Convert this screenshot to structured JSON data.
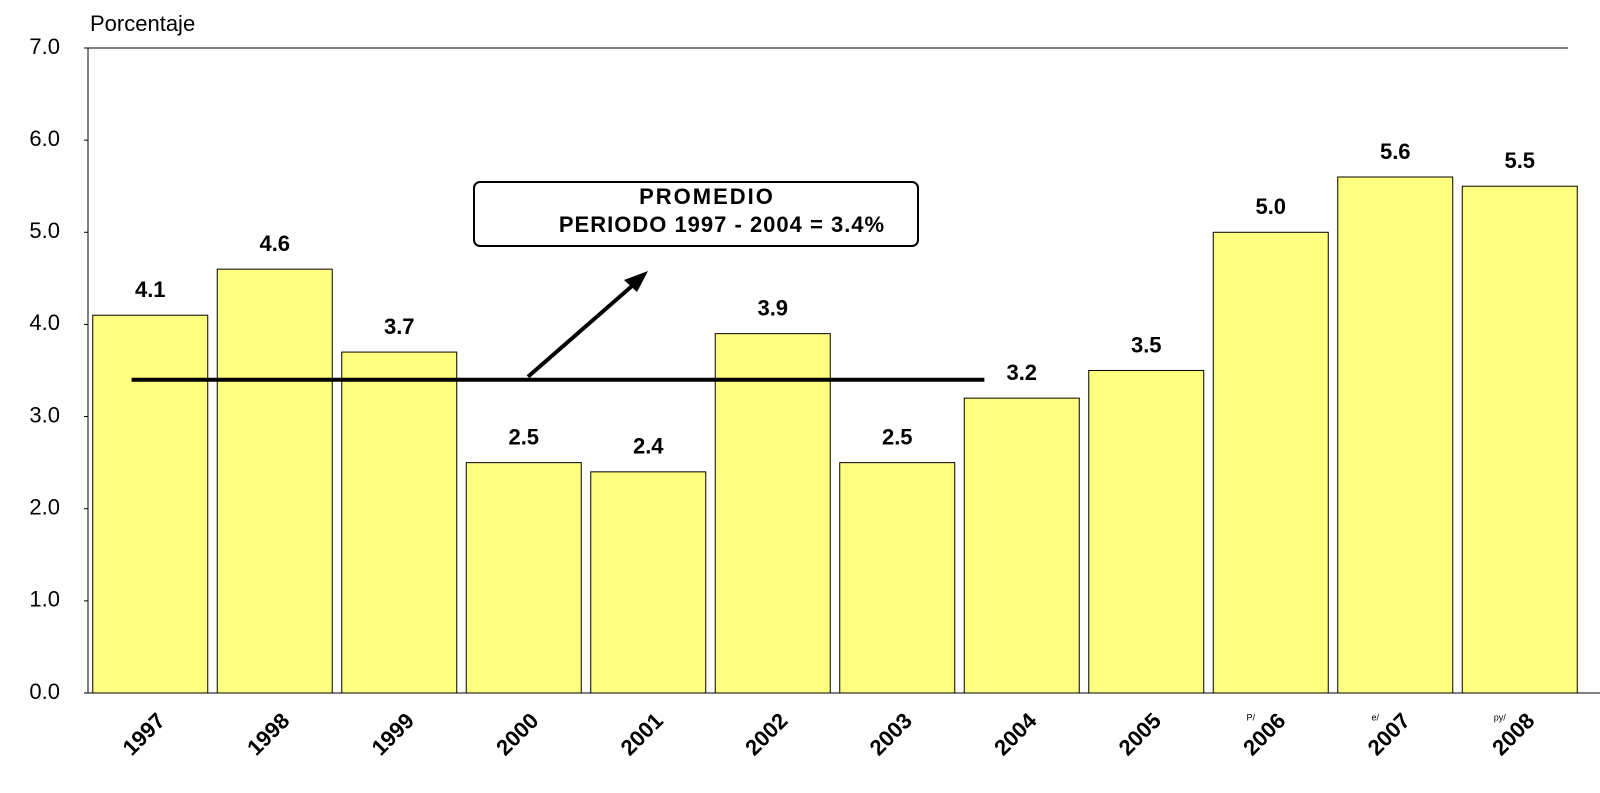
{
  "chart_data": {
    "type": "bar",
    "y_label": "Porcentaje",
    "categories": [
      "1997",
      "1998",
      "1999",
      "2000",
      "2001",
      "2002",
      "2003",
      "2004",
      "2005",
      "2006",
      "2007",
      "2008"
    ],
    "category_notes": [
      null,
      null,
      null,
      null,
      null,
      null,
      null,
      null,
      null,
      "P/",
      "e/",
      "py/"
    ],
    "values": [
      4.1,
      4.6,
      3.7,
      2.5,
      2.4,
      3.9,
      2.5,
      3.2,
      3.5,
      5.0,
      5.6,
      5.5
    ],
    "value_labels": [
      "4.1",
      "4.6",
      "3.7",
      "2.5",
      "2.4",
      "3.9",
      "2.5",
      "3.2",
      "3.5",
      "5.0",
      "5.6",
      "5.5"
    ],
    "color": "#ffff80",
    "ylim": [
      0,
      7
    ],
    "yticks": [
      {
        "value": 0,
        "label": "0.0"
      },
      {
        "value": 1,
        "label": "1.0"
      },
      {
        "value": 2,
        "label": "2.0"
      },
      {
        "value": 3,
        "label": "3.0"
      },
      {
        "value": 4,
        "label": "4.0"
      },
      {
        "value": 5,
        "label": "5.0"
      },
      {
        "value": 6,
        "label": "6.0"
      },
      {
        "value": 7,
        "label": "7.0"
      }
    ],
    "reference_line": 3.4,
    "annotation": [
      "PROMEDIO",
      "PERIODO 1997 - 2004 = 3.4%"
    ]
  }
}
